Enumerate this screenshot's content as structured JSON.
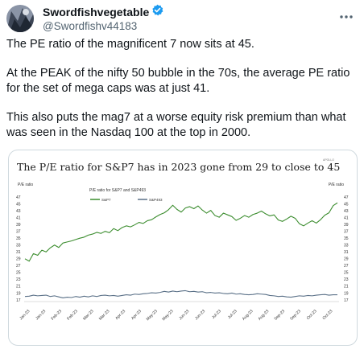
{
  "tweet": {
    "display_name": "Swordfishvegetable",
    "handle": "@Swordfishv44183",
    "paragraphs": [
      "The PE ratio of the magnificent 7 now sits at 45.",
      "At the PEAK of the nifty 50 bubble in the 70s, the average PE ratio for the set of mega caps was at just 41.",
      "This also puts the mag7 at a worse equity risk premium than what was seen in the Nasdaq 100 at the top in 2000."
    ],
    "verified_badge_color": "#1d9bf0"
  },
  "chart_data": {
    "type": "line",
    "title": "The P/E ratio for S&P7 has in 2023 gone from 29 to close to 45",
    "brand": "APOLLO",
    "inner_title": "P/E ratio for S&P7 and S&P493",
    "ylabel_left": "P/E ratio",
    "ylabel_right": "P/E ratio",
    "y_ticks": [
      17,
      19,
      21,
      23,
      25,
      27,
      29,
      31,
      33,
      35,
      37,
      39,
      41,
      43,
      45,
      47
    ],
    "ylim": [
      17,
      47
    ],
    "x_ticks": [
      "Jan-23",
      "Jan-23",
      "Feb-23",
      "Feb-23",
      "Mar-23",
      "Mar-23",
      "Apr-23",
      "Apr-23",
      "May-23",
      "May-23",
      "Jun-23",
      "Jun-23",
      "Jul-23",
      "Jul-23",
      "Aug-23",
      "Aug-23",
      "Sep-23",
      "Sep-23",
      "Oct-23",
      "Oct-23"
    ],
    "grid": false,
    "legend_position": "top-center",
    "series": [
      {
        "name": "S&P7",
        "color": "#3c8d2f",
        "values": [
          29.0,
          28.3,
          30.5,
          30.0,
          31.5,
          31.0,
          32.2,
          33.0,
          32.3,
          33.6,
          33.9,
          34.2,
          34.6,
          35.0,
          35.3,
          35.9,
          36.2,
          36.7,
          36.4,
          37.0,
          36.6,
          37.8,
          37.2,
          38.1,
          38.6,
          38.3,
          38.9,
          39.6,
          39.3,
          40.1,
          40.4,
          41.2,
          41.9,
          42.4,
          43.3,
          44.6,
          43.4,
          42.6,
          43.8,
          44.2,
          43.6,
          44.4,
          43.2,
          42.3,
          43.1,
          41.6,
          41.1,
          42.3,
          41.8,
          41.3,
          40.2,
          40.8,
          41.6,
          41.1,
          41.9,
          42.3,
          42.9,
          42.1,
          41.5,
          41.8,
          40.3,
          39.9,
          40.6,
          41.4,
          40.8,
          39.2,
          38.6,
          39.4,
          40.1,
          39.4,
          40.4,
          41.7,
          42.4,
          44.5,
          45.3
        ]
      },
      {
        "name": "S&P493",
        "color": "#5b7188",
        "values": [
          18.0,
          18.1,
          18.4,
          18.2,
          18.3,
          18.4,
          18.0,
          18.2,
          17.9,
          17.6,
          17.8,
          17.7,
          18.0,
          17.8,
          18.1,
          17.9,
          18.2,
          18.0,
          18.3,
          18.4,
          18.2,
          18.3,
          18.1,
          18.3,
          18.5,
          18.4,
          18.7,
          18.6,
          18.8,
          18.9,
          19.1,
          19.0,
          19.2,
          19.5,
          19.3,
          19.6,
          19.4,
          19.6,
          19.7,
          19.4,
          19.5,
          19.3,
          19.4,
          19.1,
          19.2,
          19.0,
          19.1,
          18.9,
          18.8,
          19.0,
          18.7,
          18.8,
          18.6,
          18.5,
          18.6,
          18.8,
          18.7,
          18.6,
          18.3,
          18.2,
          18.0,
          18.1,
          17.9,
          17.8,
          18.0,
          18.2,
          18.1,
          18.3,
          18.2,
          18.4,
          18.5,
          18.6,
          18.4,
          18.5,
          18.5
        ]
      }
    ]
  }
}
